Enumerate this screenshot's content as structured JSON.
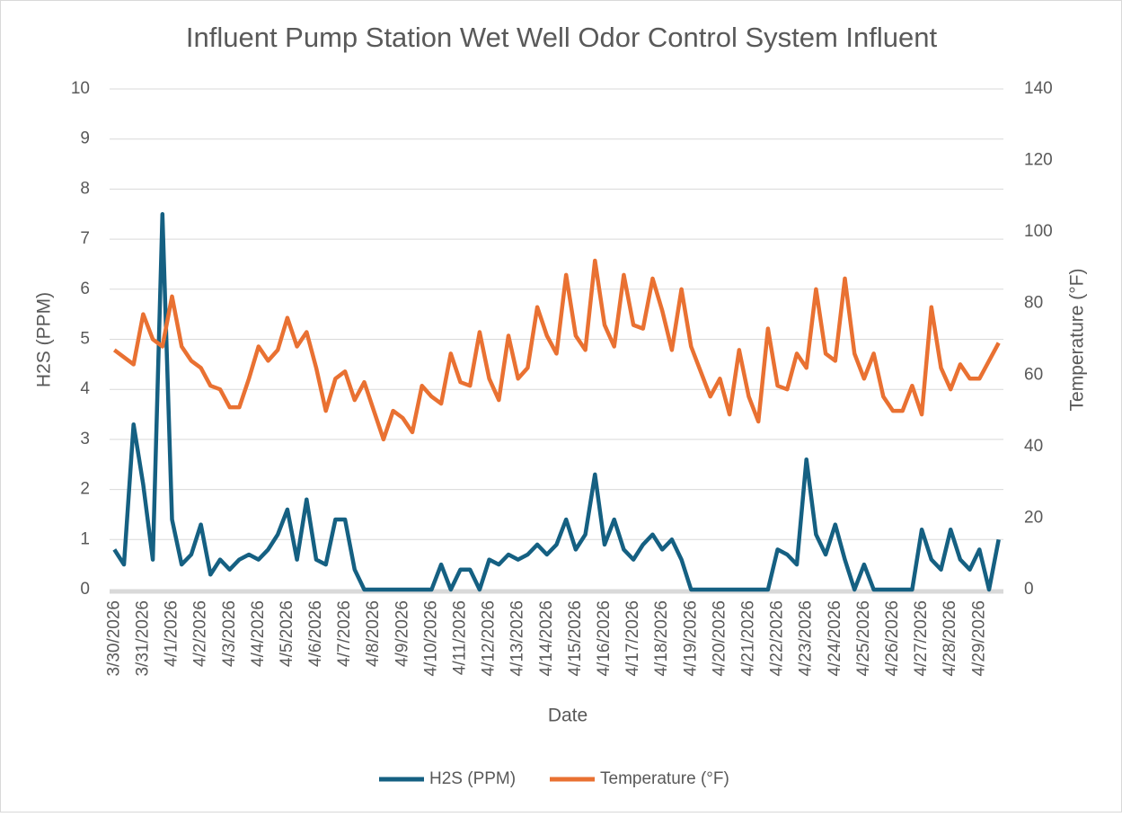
{
  "chart_data": {
    "type": "line",
    "title": "Influent Pump Station Wet Well Odor Control System Influent",
    "x_label": "Date",
    "y_label": "H2S (PPM)",
    "y2_label": "Temperature (°F)",
    "categories": [
      "3/30/2026",
      null,
      null,
      "3/31/2026",
      null,
      null,
      "4/1/2026",
      null,
      null,
      "4/2/2026",
      null,
      null,
      "4/3/2026",
      null,
      null,
      "4/4/2026",
      null,
      null,
      "4/5/2026",
      null,
      null,
      "4/6/2026",
      null,
      null,
      "4/7/2026",
      null,
      null,
      "4/8/2026",
      null,
      null,
      "4/9/2026",
      null,
      null,
      "4/10/2026",
      null,
      null,
      "4/11/2026",
      null,
      null,
      "4/12/2026",
      null,
      null,
      "4/13/2026",
      null,
      null,
      "4/14/2026",
      null,
      null,
      "4/15/2026",
      null,
      null,
      "4/16/2026",
      null,
      null,
      "4/17/2026",
      null,
      null,
      "4/18/2026",
      null,
      null,
      "4/19/2026",
      null,
      null,
      "4/20/2026",
      null,
      null,
      "4/21/2026",
      null,
      null,
      "4/22/2026",
      null,
      null,
      "4/23/2026",
      null,
      null,
      "4/24/2026",
      null,
      null,
      "4/25/2026",
      null,
      null,
      "4/26/2026",
      null,
      null,
      "4/27/2026",
      null,
      null,
      "4/28/2026",
      null,
      null,
      "4/29/2026",
      null,
      null
    ],
    "series": [
      {
        "name": "H2S (PPM)",
        "color": "#156082",
        "axis": "y",
        "values": [
          0.8,
          0.5,
          3.3,
          2.1,
          0.6,
          7.5,
          1.4,
          0.5,
          0.7,
          1.3,
          0.3,
          0.6,
          0.4,
          0.6,
          0.7,
          0.6,
          0.8,
          1.1,
          1.6,
          0.6,
          1.8,
          0.6,
          0.5,
          1.4,
          1.4,
          0.4,
          0,
          0,
          0,
          0,
          0,
          0,
          0,
          0,
          0.5,
          0,
          0.4,
          0.4,
          0,
          0.6,
          0.5,
          0.7,
          0.6,
          0.7,
          0.9,
          0.7,
          0.9,
          1.4,
          0.8,
          1.1,
          2.3,
          0.9,
          1.4,
          0.8,
          0.6,
          0.9,
          1.1,
          0.8,
          1.0,
          0.6,
          0,
          0,
          0,
          0,
          0,
          0,
          0,
          0,
          0,
          0.8,
          0.7,
          0.5,
          2.6,
          1.1,
          0.7,
          1.3,
          0.6,
          0,
          0.5,
          0,
          0,
          0,
          0,
          0,
          1.2,
          0.6,
          0.4,
          1.2,
          0.6,
          0.4,
          0.8,
          0,
          1.0
        ]
      },
      {
        "name": "Temperature (°F)",
        "color": "#e97132",
        "axis": "y2",
        "values": [
          67,
          65,
          63,
          77,
          70,
          68,
          82,
          68,
          64,
          62,
          57,
          56,
          51,
          51,
          59,
          68,
          64,
          67,
          76,
          68,
          72,
          62,
          50,
          59,
          61,
          53,
          58,
          50,
          42,
          50,
          48,
          44,
          57,
          54,
          52,
          66,
          58,
          57,
          72,
          59,
          53,
          71,
          59,
          62,
          79,
          71,
          66,
          88,
          71,
          67,
          92,
          74,
          68,
          88,
          74,
          73,
          87,
          78,
          67,
          84,
          68,
          61,
          54,
          59,
          49,
          67,
          54,
          47,
          73,
          57,
          56,
          66,
          62,
          84,
          66,
          64,
          87,
          66,
          59,
          66,
          54,
          50,
          50,
          57,
          49,
          79,
          62,
          56,
          63,
          59,
          59,
          64,
          69
        ]
      }
    ],
    "ylim": [
      0,
      10
    ],
    "yticks": [
      0,
      1,
      2,
      3,
      4,
      5,
      6,
      7,
      8,
      9,
      10
    ],
    "y2lim": [
      0,
      140
    ],
    "y2ticks": [
      0,
      20,
      40,
      60,
      80,
      100,
      120,
      140
    ],
    "grid": true,
    "legend": "bottom"
  }
}
